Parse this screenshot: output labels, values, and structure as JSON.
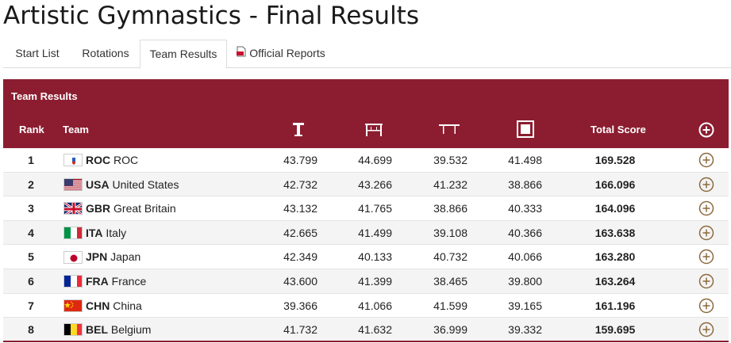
{
  "page": {
    "title": "Artistic Gymnastics - Final Results"
  },
  "tabs": [
    {
      "label": "Start List"
    },
    {
      "label": "Rotations"
    },
    {
      "label": "Team Results"
    },
    {
      "label": "Official Reports"
    }
  ],
  "table": {
    "title": "Team Results",
    "headers": {
      "rank": "Rank",
      "team": "Team",
      "total": "Total Score"
    },
    "apparatus_icons": [
      "floor-exercise-icon",
      "pommel-horse-icon",
      "rings-icon",
      "vault-icon"
    ],
    "rows": [
      {
        "rank": "1",
        "noc": "ROC",
        "country": "ROC",
        "flag": "roc-flag-icon",
        "scores": [
          "43.799",
          "44.699",
          "39.532",
          "41.498"
        ],
        "total": "169.528"
      },
      {
        "rank": "2",
        "noc": "USA",
        "country": "United States",
        "flag": "usa-flag-icon",
        "scores": [
          "42.732",
          "43.266",
          "41.232",
          "38.866"
        ],
        "total": "166.096"
      },
      {
        "rank": "3",
        "noc": "GBR",
        "country": "Great Britain",
        "flag": "gbr-flag-icon",
        "scores": [
          "43.132",
          "41.765",
          "38.866",
          "40.333"
        ],
        "total": "164.096"
      },
      {
        "rank": "4",
        "noc": "ITA",
        "country": "Italy",
        "flag": "ita-flag-icon",
        "scores": [
          "42.665",
          "41.499",
          "39.108",
          "40.366"
        ],
        "total": "163.638"
      },
      {
        "rank": "5",
        "noc": "JPN",
        "country": "Japan",
        "flag": "jpn-flag-icon",
        "scores": [
          "42.349",
          "40.133",
          "40.732",
          "40.066"
        ],
        "total": "163.280"
      },
      {
        "rank": "6",
        "noc": "FRA",
        "country": "France",
        "flag": "fra-flag-icon",
        "scores": [
          "43.600",
          "41.399",
          "38.465",
          "39.800"
        ],
        "total": "163.264"
      },
      {
        "rank": "7",
        "noc": "CHN",
        "country": "China",
        "flag": "chn-flag-icon",
        "scores": [
          "39.366",
          "41.066",
          "41.599",
          "39.165"
        ],
        "total": "161.196"
      },
      {
        "rank": "8",
        "noc": "BEL",
        "country": "Belgium",
        "flag": "bel-flag-icon",
        "scores": [
          "41.732",
          "41.632",
          "36.999",
          "39.332"
        ],
        "total": "159.695"
      }
    ]
  },
  "colors": {
    "header_bg": "#8c1d30",
    "accent_icon": "#8b6a3e",
    "alt_row": "#f4f4f4"
  }
}
